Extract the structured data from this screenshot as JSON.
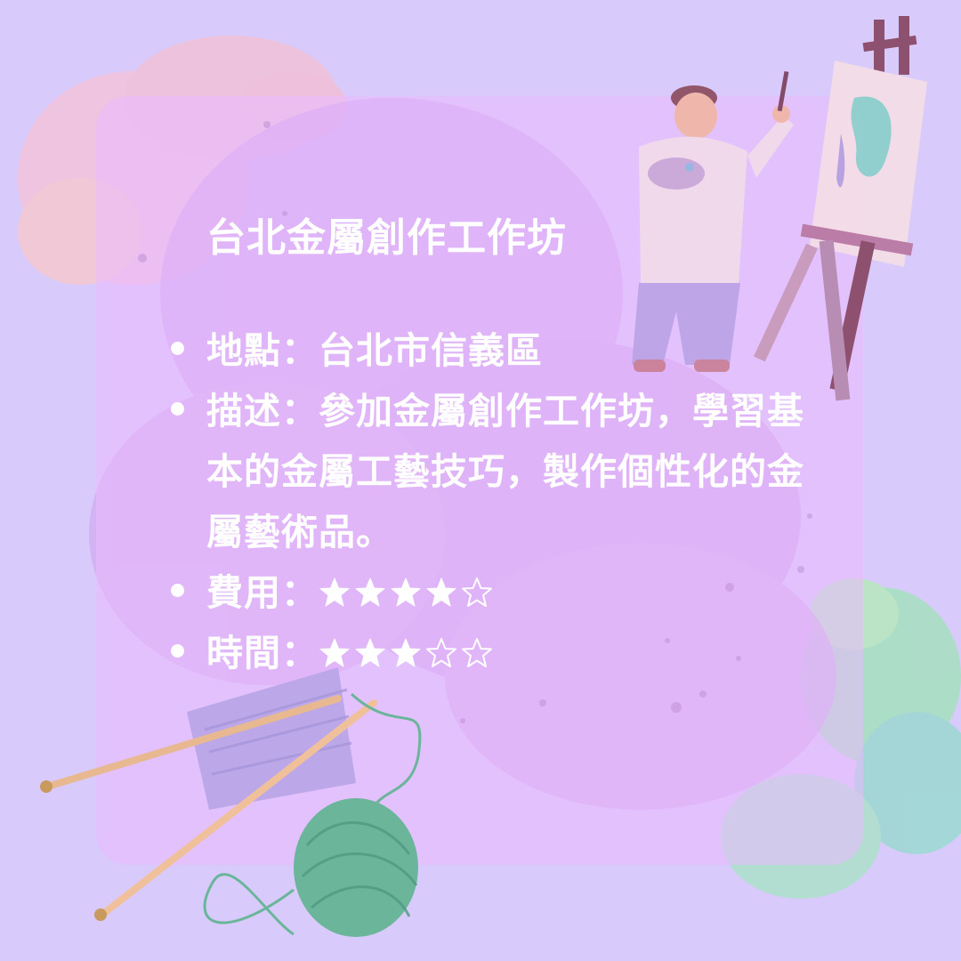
{
  "title": "台北金屬創作工作坊",
  "details": {
    "location_label": "地點：",
    "location_value": "台北市信義區",
    "description_label": "描述：",
    "description_value": "參加金屬創作工作坊，學習基本的金屬工藝技巧，製作個性化的金屬藝術品。",
    "cost_label": "費用：",
    "time_label": "時間："
  },
  "ratings": {
    "cost": {
      "filled": 4,
      "max": 5
    },
    "time": {
      "filled": 3,
      "max": 5
    }
  },
  "colors": {
    "background": "#d8cbfb",
    "card": "#ebbaff",
    "text": "#ffffff",
    "yarn": "#6bb59b"
  },
  "icons": [
    "painter-illustration",
    "easel-canvas-illustration",
    "knitting-needles-yarn-illustration",
    "watercolor-splash"
  ]
}
